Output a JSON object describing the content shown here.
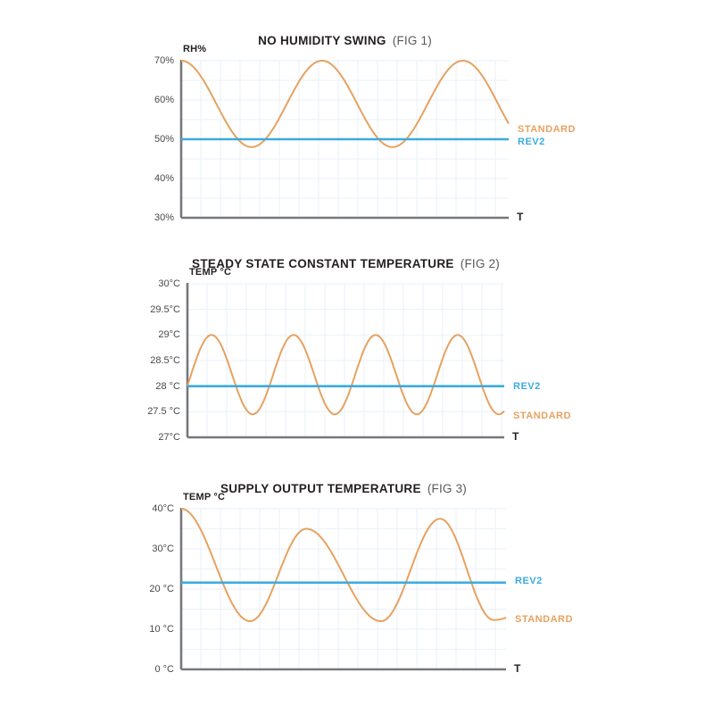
{
  "colors": {
    "standard": "#E6A261",
    "rev2": "#3BABDF",
    "axis": "#77787B",
    "grid": "#EAF2F8",
    "title": "#231F20",
    "fig_tag": "#58595B",
    "tick_text": "#47484A"
  },
  "chart_data": [
    {
      "type": "line",
      "title": "NO HUMIDITY SWING",
      "fig": "(FIG 1)",
      "y_axis_label": "RH%",
      "x_axis_label": "T",
      "y_min": 30,
      "y_max": 70,
      "grid_y_step": 5,
      "y_ticks": [
        {
          "value": 70,
          "label": "70%"
        },
        {
          "value": 60,
          "label": "60%"
        },
        {
          "value": 50,
          "label": "50%"
        },
        {
          "value": 40,
          "label": "40%"
        },
        {
          "value": 30,
          "label": "30%"
        }
      ],
      "series": [
        {
          "name": "STANDARD",
          "color": "#E6A261",
          "kind": "wave",
          "extremes": [
            [
              0,
              70
            ],
            [
              0.215,
              48
            ],
            [
              0.43,
              70
            ],
            [
              0.645,
              48
            ],
            [
              0.86,
              70
            ],
            [
              1.075,
              48
            ]
          ],
          "label_value": 52.45
        },
        {
          "name": "REV2",
          "color": "#3BABDF",
          "kind": "flat",
          "value": 50,
          "label_value": 49.35
        }
      ]
    },
    {
      "type": "line",
      "title": "STEADY STATE CONSTANT TEMPERATURE",
      "fig": "(FIG 2)",
      "y_axis_label": "TEMP °C",
      "x_axis_label": "T",
      "y_min": 27,
      "y_max": 30,
      "grid_y_step": 0.5,
      "y_ticks": [
        {
          "value": 30,
          "label": "30°C"
        },
        {
          "value": 29.5,
          "label": "29.5°C"
        },
        {
          "value": 29,
          "label": "29°C"
        },
        {
          "value": 28.5,
          "label": "28.5°C"
        },
        {
          "value": 28,
          "label": "28 °C"
        },
        {
          "value": 27.5,
          "label": "27.5 °C"
        },
        {
          "value": 27,
          "label": "27°C"
        }
      ],
      "series": [
        {
          "name": "STANDARD",
          "color": "#E6A261",
          "kind": "wave",
          "extremes": [
            [
              -0.053,
              27.45
            ],
            [
              0.076,
              29
            ],
            [
              0.206,
              27.45
            ],
            [
              0.335,
              29
            ],
            [
              0.465,
              27.45
            ],
            [
              0.594,
              29
            ],
            [
              0.724,
              27.45
            ],
            [
              0.853,
              29
            ],
            [
              0.983,
              27.45
            ],
            [
              1.112,
              29
            ]
          ],
          "label_value": 27.42
        },
        {
          "name": "REV2",
          "color": "#3BABDF",
          "kind": "flat",
          "value": 28,
          "label_value": 28.0
        }
      ]
    },
    {
      "type": "line",
      "title": "SUPPLY OUTPUT TEMPERATURE",
      "fig": "(FIG 3)",
      "y_axis_label": "TEMP °C",
      "x_axis_label": "T",
      "y_min": 0,
      "y_max": 40,
      "grid_y_step": 5,
      "y_ticks": [
        {
          "value": 40,
          "label": "40°C"
        },
        {
          "value": 30,
          "label": "30°C"
        },
        {
          "value": 20,
          "label": "20 °C"
        },
        {
          "value": 10,
          "label": "10 °C"
        },
        {
          "value": 0,
          "label": "0 °C"
        }
      ],
      "series": [
        {
          "name": "STANDARD",
          "color": "#E6A261",
          "kind": "wave",
          "extremes": [
            [
              0,
              40
            ],
            [
              0.212,
              12
            ],
            [
              0.385,
              35
            ],
            [
              0.615,
              12
            ],
            [
              0.797,
              37.5
            ],
            [
              0.962,
              12.3
            ],
            [
              1.33,
              35
            ]
          ],
          "label_value": 12.4
        },
        {
          "name": "REV2",
          "color": "#3BABDF",
          "kind": "flat",
          "value": 21.6,
          "label_value": 21.9
        }
      ]
    }
  ]
}
